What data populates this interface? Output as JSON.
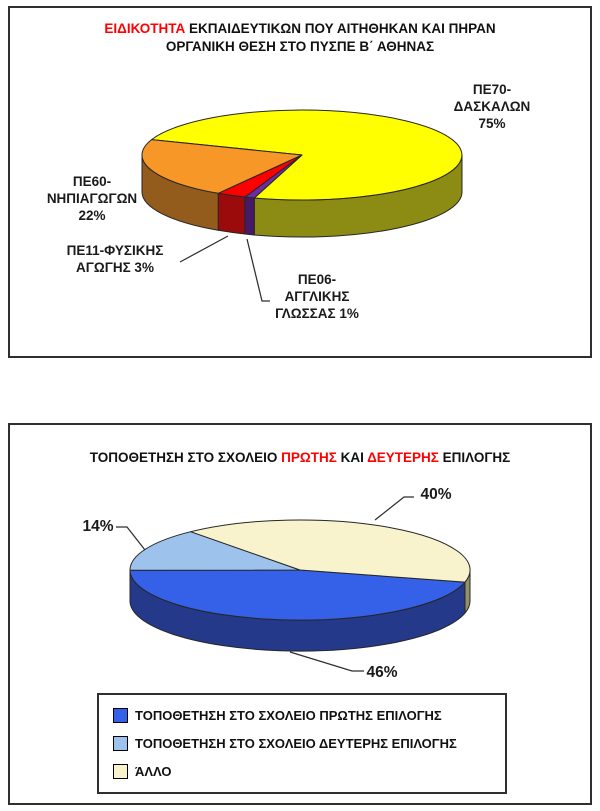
{
  "page": {
    "background": "#FFFFFF",
    "text_color": "#111111",
    "accent_red": "#FF0000"
  },
  "chart_data": [
    {
      "type": "pie",
      "style": "3d",
      "title": "ΕΙΔΙΚΟΤΗΤΑ ΕΚΠΑΙΔΕΥΤΙΚΩΝ ΠΟΥ ΑΙΤΗΘΗΚΑΝ ΚΑΙ ΠΗΡΑΝ ΟΡΓΑΝΙΚΗ ΘΕΣΗ ΣΤΟ ΠΥΣΠΕ Β΄ ΑΘΗΝΑΣ",
      "title_lines": [
        [
          {
            "text": "ΕΙΔΙΚΟΤΗΤΑ ",
            "color": "#FF0000"
          },
          {
            "text": "ΕΚΠΑΙΔΕΥΤΙΚΩΝ ΠΟΥ ΑΙΤΗΘΗΚΑΝ ΚΑΙ ΠΗΡΑΝ",
            "color": "#111111"
          }
        ],
        [
          {
            "text": "ΟΡΓΑΝΙΚΗ ΘΕΣΗ ΣΤΟ ΠΥΣΠΕ Β΄ ΑΘΗΝΑΣ",
            "color": "#111111"
          }
        ]
      ],
      "legend": null,
      "slices": [
        {
          "label": "ΠΕ70-ΔΑΣΚΑΛΩΝ",
          "value": 75,
          "percent_label": "75%",
          "color": "#FFFF00",
          "side_color": "#8C8C15",
          "callout_lines": [
            "ΠΕ70-",
            "ΔΑΣΚΑΛΩΝ",
            "75%"
          ]
        },
        {
          "label": "ΠΕ06-ΑΓΓΛΙΚΗΣ ΓΛΩΣΣΑΣ",
          "value": 1,
          "percent_label": "1%",
          "color": "#6A2C9E",
          "side_color": "#471968",
          "callout_lines": [
            "ΠΕ06-",
            "ΑΓΓΛΙΚΗΣ",
            "ΓΛΩΣΣΑΣ 1%"
          ]
        },
        {
          "label": "ΠΕ11-ΦΥΣΙΚΗΣ ΑΓΩΓΗΣ",
          "value": 3,
          "percent_label": "3%",
          "color": "#FE0000",
          "side_color": "#9B0B0B",
          "callout_lines": [
            "ΠΕ11-ΦΥΣΙΚΗΣ",
            "ΑΓΩΓΗΣ 3%"
          ]
        },
        {
          "label": "ΠΕ60-ΝΗΠΙΑΓΩΓΩΝ",
          "value": 22,
          "percent_label": "22%",
          "color": "#F79728",
          "side_color": "#935C1D",
          "callout_lines": [
            "ΠΕ60-",
            "ΝΗΠΙΑΓΩΓΩΝ",
            "22%"
          ]
        }
      ]
    },
    {
      "type": "pie",
      "style": "3d",
      "title": "ΤΟΠΟΘΕΤΗΣΗ ΣΤΟ ΣΧΟΛΕΙΟ ΠΡΩΤΗΣ ΚΑΙ ΔΕΥΤΕΡΗΣ ΕΠΙΛΟΓΗΣ",
      "title_lines": [
        [
          {
            "text": "ΤΟΠΟΘΕΤΗΣΗ ΣΤΟ ΣΧΟΛΕΙΟ ",
            "color": "#111111"
          },
          {
            "text": "ΠΡΩΤΗΣ",
            "color": "#FF0000"
          },
          {
            "text": " ΚΑΙ ",
            "color": "#111111"
          },
          {
            "text": "ΔΕΥΤΕΡΗΣ",
            "color": "#FF0000"
          },
          {
            "text": " ΕΠΙΛΟΓΗΣ",
            "color": "#111111"
          }
        ]
      ],
      "slices": [
        {
          "label": "ΤΟΠΟΘΕΤΗΣΗ ΣΤΟ ΣΧΟΛΕΙΟ ΠΡΩΤΗΣ ΕΠΙΛΟΓΗΣ",
          "value": 46,
          "percent_label": "46%",
          "color": "#3560E8",
          "side_color": "#24398A",
          "callout": "46%"
        },
        {
          "label": "ΤΟΠΟΘΕΤΗΣΗ ΣΤΟ ΣΧΟΛΕΙΟ ΔΕΥΤΕΡΗΣ ΕΠΙΛΟΓΗΣ",
          "value": 14,
          "percent_label": "14%",
          "color": "#9DC3EC",
          "side_color": "#5F7FA8",
          "callout": "14%"
        },
        {
          "label": "ΆΛΛΟ",
          "value": 40,
          "percent_label": "40%",
          "color": "#F8F3CC",
          "side_color": "#95906C",
          "callout": "40%"
        }
      ],
      "legend": {
        "position": "bottom",
        "items": [
          {
            "label": "ΤΟΠΟΘΕΤΗΣΗ ΣΤΟ ΣΧΟΛΕΙΟ ΠΡΩΤΗΣ ΕΠΙΛΟΓΗΣ"
          },
          {
            "label": "ΤΟΠΟΘΕΤΗΣΗ ΣΤΟ ΣΧΟΛΕΙΟ ΔΕΥΤΕΡΗΣ ΕΠΙΛΟΓΗΣ"
          },
          {
            "label": "ΆΛΛΟ"
          }
        ]
      }
    }
  ]
}
